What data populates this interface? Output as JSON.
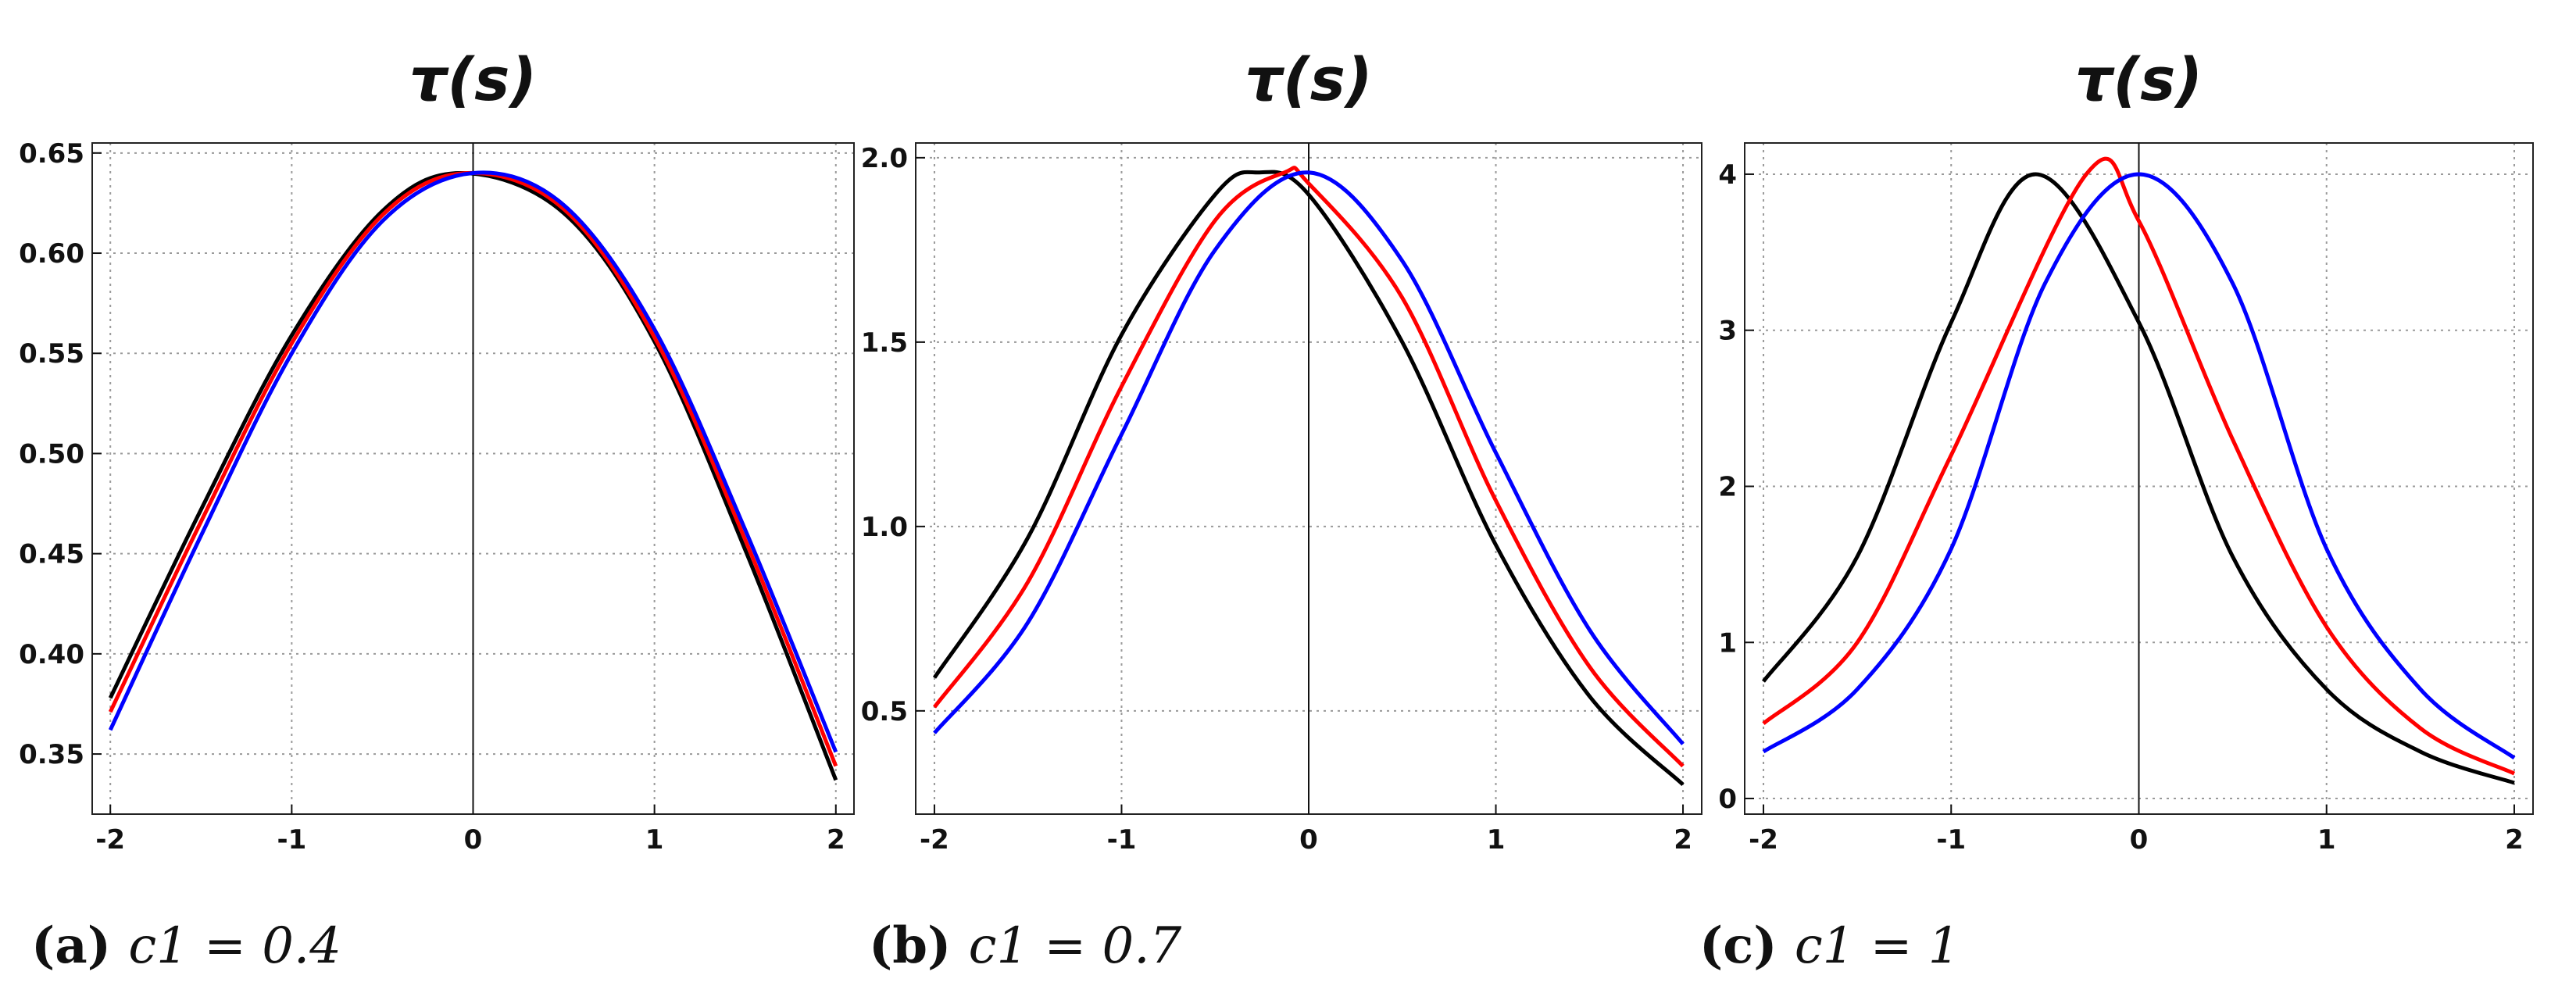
{
  "chart_data": [
    {
      "type": "line",
      "title": "τ(s)",
      "caption_label": "(a)",
      "caption_text": "c1 = 0.4",
      "xlim": [
        -2.1,
        2.1
      ],
      "ylim": [
        0.32,
        0.655
      ],
      "xticks": [
        -2,
        -1,
        0,
        1,
        2
      ],
      "xtick_labels": [
        "-2",
        "-1",
        "0",
        "1",
        "2"
      ],
      "yticks": [
        0.35,
        0.4,
        0.45,
        0.5,
        0.55,
        0.6,
        0.65
      ],
      "ytick_labels": [
        "0.35",
        "0.40",
        "0.45",
        "0.50",
        "0.55",
        "0.60",
        "0.65"
      ],
      "grid": true,
      "series": [
        {
          "color": "#000000",
          "x": [
            -2.0,
            -1.5,
            -1.0,
            -0.5,
            -0.06,
            0.5,
            1.0,
            1.5,
            2.0
          ],
          "values": [
            0.378,
            0.472,
            0.559,
            0.621,
            0.64,
            0.62,
            0.556,
            0.452,
            0.337
          ]
        },
        {
          "color": "#ff0000",
          "x": [
            -2.0,
            -1.5,
            -1.0,
            -0.5,
            -0.03,
            0.5,
            1.0,
            1.5,
            2.0
          ],
          "values": [
            0.371,
            0.466,
            0.555,
            0.619,
            0.64,
            0.622,
            0.558,
            0.457,
            0.344
          ]
        },
        {
          "color": "#0000ff",
          "x": [
            -2.0,
            -1.5,
            -1.0,
            -0.5,
            0.0,
            0.5,
            1.0,
            1.5,
            2.0
          ],
          "values": [
            0.362,
            0.459,
            0.55,
            0.616,
            0.64,
            0.624,
            0.562,
            0.462,
            0.351
          ]
        }
      ]
    },
    {
      "type": "line",
      "title": "τ(s)",
      "caption_label": "(b)",
      "caption_text": "c1 = 0.7",
      "xlim": [
        -2.1,
        2.1
      ],
      "ylim": [
        0.22,
        2.04
      ],
      "xticks": [
        -2,
        -1,
        0,
        1,
        2
      ],
      "xtick_labels": [
        "-2",
        "-1",
        "0",
        "1",
        "2"
      ],
      "yticks": [
        0.5,
        1.0,
        1.5,
        2.0
      ],
      "ytick_labels": [
        "0.5",
        "1.0",
        "1.5",
        "2.0"
      ],
      "grid": true,
      "series": [
        {
          "color": "#000000",
          "x": [
            -2.0,
            -1.5,
            -1.0,
            -0.5,
            -0.27,
            0.0,
            0.5,
            1.0,
            1.5,
            2.0
          ],
          "values": [
            0.59,
            0.97,
            1.52,
            1.9,
            1.96,
            1.9,
            1.5,
            0.95,
            0.54,
            0.3
          ]
        },
        {
          "color": "#ff0000",
          "x": [
            -2.0,
            -1.5,
            -1.0,
            -0.5,
            -0.13,
            0.0,
            0.5,
            1.0,
            1.5,
            2.0
          ],
          "values": [
            0.51,
            0.85,
            1.38,
            1.83,
            1.96,
            1.93,
            1.62,
            1.07,
            0.62,
            0.35
          ]
        },
        {
          "color": "#0000ff",
          "x": [
            -2.0,
            -1.5,
            -1.0,
            -0.5,
            0.0,
            0.5,
            1.0,
            1.5,
            2.0
          ],
          "values": [
            0.44,
            0.74,
            1.25,
            1.75,
            1.96,
            1.72,
            1.2,
            0.72,
            0.41
          ]
        }
      ]
    },
    {
      "type": "line",
      "title": "τ(s)",
      "caption_label": "(c)",
      "caption_text": "c1 = 1",
      "xlim": [
        -2.1,
        2.1
      ],
      "ylim": [
        -0.1,
        4.2
      ],
      "xticks": [
        -2,
        -1,
        0,
        1,
        2
      ],
      "xtick_labels": [
        "-2",
        "-1",
        "0",
        "1",
        "2"
      ],
      "yticks": [
        0,
        1,
        2,
        3,
        4
      ],
      "ytick_labels": [
        "0",
        "1",
        "2",
        "3",
        "4"
      ],
      "grid": true,
      "series": [
        {
          "color": "#000000",
          "x": [
            -2.0,
            -1.5,
            -1.0,
            -0.55,
            0.0,
            0.5,
            1.0,
            1.5,
            2.0
          ],
          "values": [
            0.75,
            1.55,
            3.05,
            4.0,
            3.05,
            1.55,
            0.7,
            0.3,
            0.1
          ]
        },
        {
          "color": "#ff0000",
          "x": [
            -2.0,
            -1.5,
            -1.0,
            -0.28,
            0.0,
            0.5,
            1.0,
            1.5,
            2.0
          ],
          "values": [
            0.48,
            1.0,
            2.2,
            4.0,
            3.7,
            2.3,
            1.1,
            0.45,
            0.16
          ]
        },
        {
          "color": "#0000ff",
          "x": [
            -2.0,
            -1.5,
            -1.0,
            -0.5,
            0.0,
            0.5,
            1.0,
            1.5,
            2.0
          ],
          "values": [
            0.3,
            0.7,
            1.6,
            3.3,
            4.0,
            3.3,
            1.6,
            0.7,
            0.26
          ]
        }
      ]
    }
  ]
}
